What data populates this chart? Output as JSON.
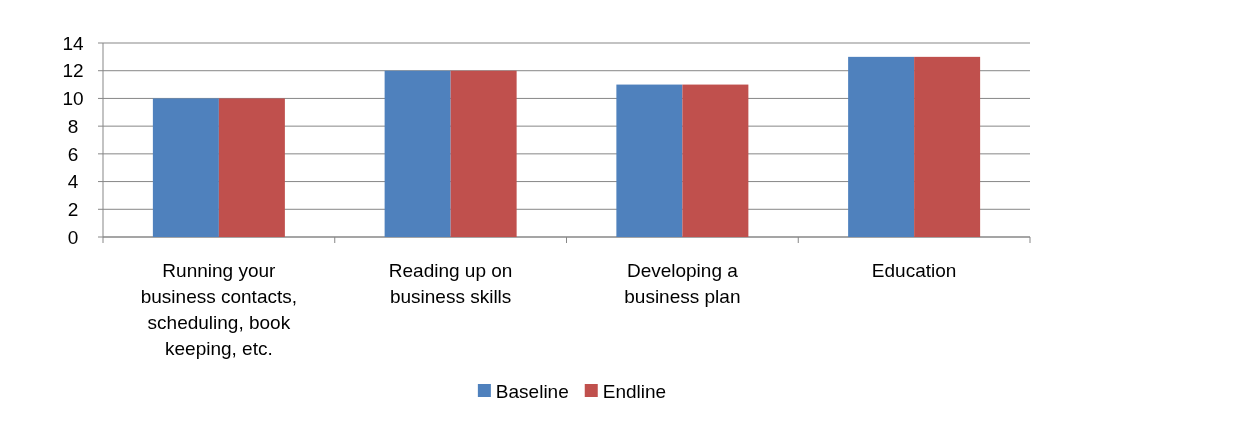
{
  "chart_data": {
    "type": "bar",
    "categories": [
      "Running your business contacts, scheduling, book keeping, etc.",
      "Reading up on business skills",
      "Developing a business plan",
      "Education"
    ],
    "series": [
      {
        "name": "Baseline",
        "color": "#4f81bd",
        "values": [
          10,
          12,
          11,
          13
        ]
      },
      {
        "name": "Endline",
        "color": "#c0504d",
        "values": [
          10,
          12,
          11,
          13
        ]
      }
    ],
    "ylim": [
      0,
      14
    ],
    "yticks": [
      0,
      2,
      4,
      6,
      8,
      10,
      12,
      14
    ],
    "grid": "y",
    "legend": "bottom"
  }
}
